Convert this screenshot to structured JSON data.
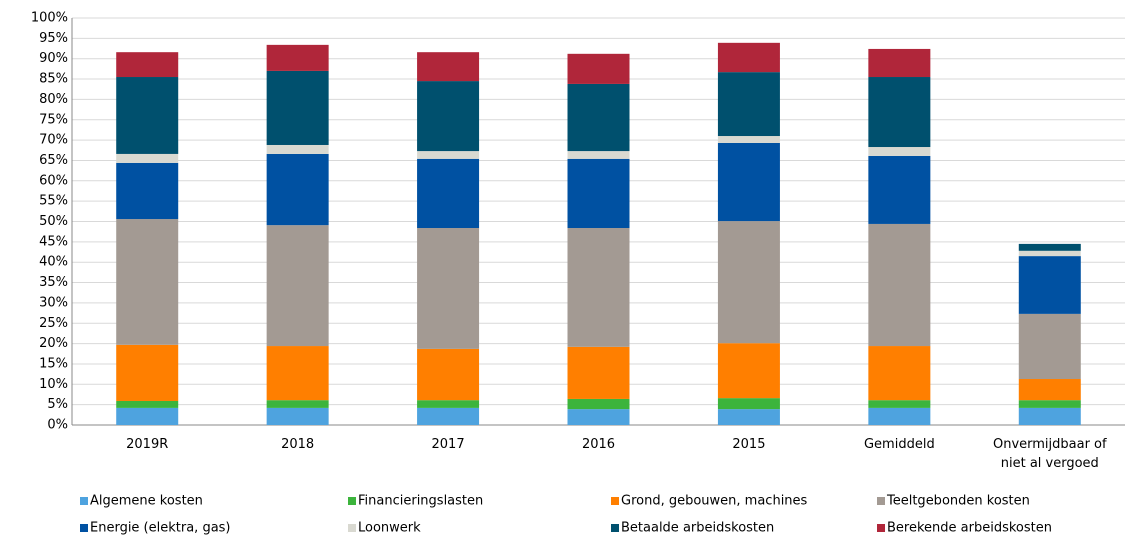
{
  "chart_data": {
    "type": "stacked_bar",
    "categories": [
      "2019R",
      "2018",
      "2017",
      "2016",
      "2015",
      "Gemiddeld",
      "Onvermijdbaar of niet al vergoed"
    ],
    "series": [
      {
        "name": "Algemene kosten",
        "color": "#4ea3df",
        "values": [
          4.2,
          4.2,
          4.2,
          3.9,
          3.9,
          4.2,
          4.2
        ]
      },
      {
        "name": "Financieringslasten",
        "color": "#3cb43c",
        "values": [
          1.7,
          1.9,
          1.9,
          2.5,
          2.7,
          1.9,
          1.9
        ]
      },
      {
        "name": "Grond, gebouwen, machines",
        "color": "#ff7f00",
        "values": [
          13.8,
          13.3,
          12.6,
          12.8,
          13.5,
          13.3,
          5.2
        ]
      },
      {
        "name": "Teeltgebonden kosten",
        "color": "#a39a93",
        "values": [
          30.9,
          29.7,
          29.7,
          29.2,
          30.0,
          30.0,
          16.0
        ]
      },
      {
        "name": "Energie (elektra, gas)",
        "color": "#0051a2",
        "values": [
          13.8,
          17.5,
          17.0,
          17.0,
          19.2,
          16.7,
          14.2
        ]
      },
      {
        "name": "Loonwerk",
        "color": "#d9d9d1",
        "values": [
          2.2,
          2.2,
          1.9,
          1.9,
          1.7,
          2.2,
          1.3
        ]
      },
      {
        "name": "Betaalde arbeidskosten",
        "color": "#00506e",
        "values": [
          18.9,
          18.2,
          17.2,
          16.5,
          15.7,
          17.2,
          1.7
        ]
      },
      {
        "name": "Berekende arbeidskosten",
        "color": "#b0263a",
        "values": [
          6.1,
          6.4,
          7.1,
          7.4,
          7.2,
          6.9,
          0
        ]
      }
    ],
    "ylim": [
      0,
      100
    ],
    "yticks": [
      {
        "value": 0,
        "label": "0%"
      },
      {
        "value": 5,
        "label": "5%"
      },
      {
        "value": 10,
        "label": "10%"
      },
      {
        "value": 15,
        "label": "15%"
      },
      {
        "value": 20,
        "label": "20%"
      },
      {
        "value": 25,
        "label": "25%"
      },
      {
        "value": 30,
        "label": "30%"
      },
      {
        "value": 35,
        "label": "35%"
      },
      {
        "value": 40,
        "label": "40%"
      },
      {
        "value": 45,
        "label": "45%"
      },
      {
        "value": 50,
        "label": "50%"
      },
      {
        "value": 55,
        "label": "55%"
      },
      {
        "value": 60,
        "label": "60%"
      },
      {
        "value": 65,
        "label": "65%"
      },
      {
        "value": 70,
        "label": "70%"
      },
      {
        "value": 75,
        "label": "75%"
      },
      {
        "value": 80,
        "label": "80%"
      },
      {
        "value": 85,
        "label": "85%"
      },
      {
        "value": 90,
        "label": "90%"
      },
      {
        "value": 95,
        "label": "95%"
      },
      {
        "value": 100,
        "label": "100%"
      }
    ],
    "grid": true,
    "legend": "bottom"
  }
}
